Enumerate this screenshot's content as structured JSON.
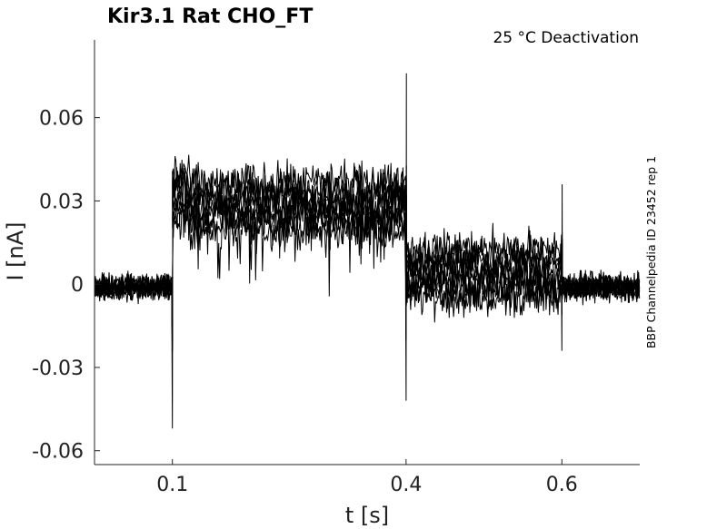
{
  "chart_data": {
    "type": "line",
    "title": "Kir3.1  Rat  CHO_FT",
    "subtitle": "25 °C  Deactivation",
    "side_label": "BBP Channelpedia ID 23452 rep 1",
    "xlabel": "t [s]",
    "ylabel": "I [nA]",
    "xlim": [
      0,
      0.7
    ],
    "ylim": [
      -0.065,
      0.088
    ],
    "xticks": [
      0.1,
      0.4,
      0.6
    ],
    "xtick_labels": [
      "0.1",
      "0.4",
      "0.6"
    ],
    "yticks": [
      -0.06,
      -0.03,
      0,
      0.03,
      0.06
    ],
    "ytick_labels": [
      "-0.06",
      "-0.03",
      "0",
      "0.03",
      "0.06"
    ],
    "grid": false,
    "legend": "none",
    "trace_color": "#000000",
    "n_traces": 9,
    "trace_levels": [
      {
        "t0": 0,
        "t1": 0.1,
        "mean": -0.001,
        "noise": 0.004
      },
      {
        "t0": 0.1,
        "t1": 0.4,
        "mean": 0.028,
        "noise": 0.006
      },
      {
        "t0": 0.4,
        "t1": 0.6,
        "mean": 0.004,
        "noise": 0.006
      },
      {
        "t0": 0.6,
        "t1": 0.7,
        "mean": -0.001,
        "noise": 0.004
      }
    ],
    "transients": [
      {
        "t": 0.1,
        "min": -0.052,
        "max": 0.035
      },
      {
        "t": 0.4,
        "min": -0.042,
        "max": 0.076
      },
      {
        "t": 0.6,
        "min": -0.024,
        "max": 0.036
      }
    ]
  }
}
